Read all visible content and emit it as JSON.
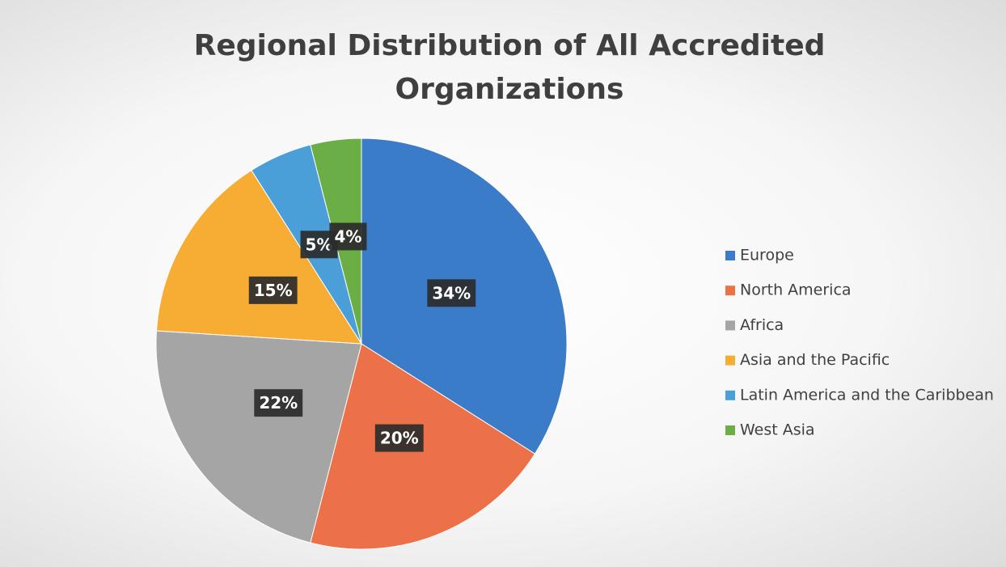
{
  "chart_data": {
    "type": "pie",
    "title": "Regional Distribution of All Accredited Organizations",
    "categories": [
      "Europe",
      "North America",
      "Africa",
      "Asia and the Pacific",
      "Latin America and the Caribbean",
      "West Asia"
    ],
    "values": [
      34,
      20,
      22,
      15,
      5,
      4
    ],
    "value_labels": [
      "34%",
      "20%",
      "22%",
      "15%",
      "5%",
      "4%"
    ],
    "colors": [
      "#3a7cc7",
      "#ec7149",
      "#a5a5a5",
      "#f7ac33",
      "#4a9fd8",
      "#6aae45"
    ],
    "legend": "right"
  }
}
